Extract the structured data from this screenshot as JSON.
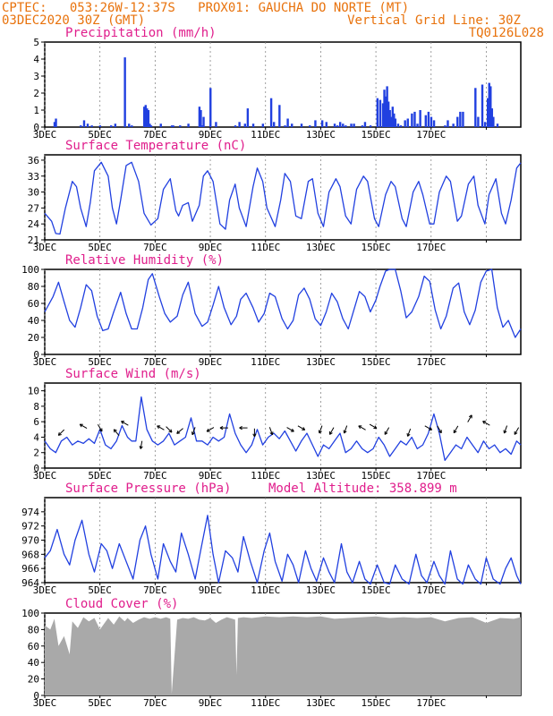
{
  "header": {
    "line1": "CPTEC:   053:26W-12:37S   PROX01: GAUCHA DO NORTE (MT)",
    "line2": "03DEC2020 30Z (GMT)",
    "grid_note": "Vertical Grid Line: 30Z",
    "code": "TQ0126L028"
  },
  "colors": {
    "header": "#e8720c",
    "title": "#e01e8c",
    "series": "#2140e0",
    "cloud": "#a9a9a9"
  },
  "x_labels": [
    "3DEC",
    "5DEC",
    "7DEC",
    "9DEC",
    "11DEC",
    "13DEC",
    "15DEC",
    "17DEC"
  ],
  "chart_data": [
    {
      "type": "bar",
      "title": "Precipitation (mm/h)",
      "ylim": [
        0,
        5
      ],
      "yticks": [
        0,
        1,
        2,
        3,
        4,
        5
      ],
      "x": [
        0.35,
        0.4,
        1.3,
        1.42,
        1.55,
        1.7,
        2.0,
        2.4,
        2.55,
        2.9,
        3.05,
        3.15,
        3.6,
        3.65,
        3.7,
        3.75,
        3.8,
        3.85,
        4.2,
        4.6,
        4.65,
        4.9,
        5.2,
        5.6,
        5.65,
        5.7,
        5.75,
        6.0,
        6.2,
        6.9,
        7.05,
        7.25,
        7.35,
        7.55,
        7.9,
        8.2,
        8.3,
        8.5,
        8.7,
        8.8,
        8.95,
        9.3,
        9.6,
        9.8,
        10.05,
        10.2,
        10.5,
        10.6,
        10.7,
        10.8,
        10.9,
        11.1,
        11.2,
        11.5,
        11.6,
        11.8,
        12.05,
        12.15,
        12.25,
        12.3,
        12.35,
        12.4,
        12.45,
        12.5,
        12.55,
        12.6,
        12.65,
        12.7,
        12.8,
        12.9,
        13.05,
        13.15,
        13.3,
        13.4,
        13.5,
        13.6,
        13.8,
        13.9,
        14.0,
        14.1,
        14.5,
        14.6,
        14.8,
        14.95,
        15.05,
        15.15,
        15.6,
        15.7,
        15.85,
        15.95,
        16.05,
        16.1,
        16.15,
        16.2,
        16.25,
        16.4
      ],
      "values": [
        0.3,
        0.5,
        0.1,
        0.4,
        0.2,
        0.1,
        0.1,
        0.1,
        0.2,
        4.1,
        0.2,
        0.1,
        1.2,
        1.3,
        1.1,
        1.0,
        0.2,
        0.1,
        0.2,
        0.1,
        0.1,
        0.1,
        0.2,
        1.2,
        1.0,
        0.1,
        0.6,
        2.3,
        0.3,
        0.1,
        0.3,
        0.2,
        1.1,
        0.2,
        0.2,
        1.7,
        0.3,
        1.3,
        0.1,
        0.5,
        0.2,
        0.2,
        0.1,
        0.4,
        0.4,
        0.3,
        0.2,
        0.1,
        0.3,
        0.2,
        0.1,
        0.2,
        0.2,
        0.1,
        0.3,
        0.1,
        1.7,
        1.6,
        1.4,
        2.2,
        1.8,
        2.4,
        1.5,
        1.0,
        0.6,
        1.2,
        0.8,
        0.5,
        0.2,
        0.1,
        0.4,
        0.5,
        0.8,
        0.9,
        0.2,
        1.0,
        0.7,
        0.9,
        0.6,
        0.4,
        0.1,
        0.4,
        0.2,
        0.6,
        0.9,
        0.9,
        2.3,
        0.6,
        2.5,
        0.3,
        1.7,
        2.6,
        2.4,
        1.1,
        0.6,
        0.2
      ]
    },
    {
      "type": "line",
      "title": "Surface Temperature (nC)",
      "ylim": [
        21,
        37
      ],
      "yticks": [
        21,
        24,
        27,
        30,
        33,
        36
      ],
      "x": [
        0,
        0.25,
        0.4,
        0.55,
        0.75,
        1.0,
        1.15,
        1.3,
        1.5,
        1.65,
        1.8,
        2.05,
        2.3,
        2.45,
        2.6,
        2.75,
        2.95,
        3.15,
        3.4,
        3.6,
        3.85,
        4.1,
        4.3,
        4.55,
        4.75,
        4.85,
        5.0,
        5.2,
        5.35,
        5.6,
        5.75,
        5.9,
        6.1,
        6.35,
        6.55,
        6.7,
        6.9,
        7.05,
        7.3,
        7.55,
        7.7,
        7.9,
        8.05,
        8.35,
        8.55,
        8.7,
        8.9,
        9.1,
        9.3,
        9.55,
        9.7,
        9.9,
        10.1,
        10.3,
        10.55,
        10.7,
        10.9,
        11.1,
        11.3,
        11.55,
        11.7,
        11.95,
        12.1,
        12.35,
        12.55,
        12.7,
        12.95,
        13.1,
        13.35,
        13.55,
        13.7,
        13.95,
        14.1,
        14.3,
        14.55,
        14.7,
        14.95,
        15.1,
        15.35,
        15.55,
        15.7,
        15.95,
        16.1,
        16.35,
        16.55,
        16.7,
        16.9,
        17.1,
        17.25
      ],
      "values": [
        26.0,
        24.5,
        22.2,
        22.1,
        27.0,
        32.0,
        31.0,
        27.0,
        23.5,
        28.0,
        34.0,
        35.6,
        33.0,
        27.0,
        24.0,
        28.5,
        35.0,
        35.6,
        32.0,
        26.0,
        23.8,
        25.0,
        30.5,
        32.5,
        26.5,
        25.5,
        27.5,
        28.0,
        24.5,
        27.5,
        33.0,
        34.0,
        32.0,
        24.0,
        23.0,
        28.5,
        31.5,
        27.0,
        23.5,
        31.0,
        34.5,
        32.0,
        27.0,
        23.5,
        28.5,
        33.5,
        32.0,
        25.5,
        25.0,
        32.0,
        32.5,
        26.0,
        23.5,
        30.0,
        32.5,
        31.0,
        25.5,
        24.0,
        30.5,
        33.0,
        32.0,
        25.0,
        23.5,
        29.5,
        32.0,
        31.0,
        25.0,
        23.5,
        30.0,
        32.0,
        29.5,
        24.0,
        24.0,
        30.0,
        33.0,
        32.0,
        24.5,
        25.5,
        31.5,
        33.0,
        27.5,
        24.0,
        29.5,
        32.5,
        26.0,
        24.0,
        28.5,
        34.5,
        35.5
      ]
    },
    {
      "type": "line",
      "title": "Relative Humidity (%)",
      "ylim": [
        0,
        100
      ],
      "yticks": [
        0,
        20,
        40,
        60,
        80,
        100
      ],
      "x": [
        0,
        0.3,
        0.5,
        0.7,
        0.9,
        1.1,
        1.3,
        1.5,
        1.7,
        1.9,
        2.1,
        2.3,
        2.5,
        2.75,
        2.95,
        3.15,
        3.35,
        3.55,
        3.75,
        3.9,
        4.15,
        4.35,
        4.55,
        4.8,
        5.0,
        5.2,
        5.45,
        5.7,
        5.9,
        6.1,
        6.3,
        6.5,
        6.75,
        6.95,
        7.1,
        7.3,
        7.55,
        7.75,
        7.95,
        8.15,
        8.35,
        8.6,
        8.8,
        9.0,
        9.2,
        9.4,
        9.6,
        9.8,
        10.0,
        10.2,
        10.4,
        10.6,
        10.8,
        11.0,
        11.2,
        11.4,
        11.6,
        11.8,
        12.0,
        12.15,
        12.35,
        12.5,
        12.7,
        12.9,
        13.1,
        13.3,
        13.55,
        13.75,
        13.95,
        14.15,
        14.35,
        14.55,
        14.8,
        15.0,
        15.2,
        15.4,
        15.6,
        15.8,
        16.0,
        16.2,
        16.4,
        16.6,
        16.8,
        17.05,
        17.25
      ],
      "values": [
        50,
        68,
        85,
        62,
        40,
        32,
        55,
        82,
        75,
        45,
        28,
        30,
        50,
        73,
        48,
        30,
        30,
        55,
        88,
        95,
        68,
        48,
        38,
        45,
        70,
        85,
        48,
        33,
        38,
        58,
        80,
        55,
        35,
        45,
        65,
        72,
        55,
        38,
        48,
        72,
        68,
        42,
        30,
        40,
        70,
        78,
        65,
        42,
        34,
        50,
        72,
        62,
        42,
        30,
        52,
        74,
        68,
        50,
        64,
        80,
        98,
        100,
        100,
        75,
        43,
        50,
        68,
        92,
        86,
        52,
        30,
        45,
        78,
        84,
        50,
        35,
        52,
        85,
        98,
        100,
        55,
        32,
        40,
        20,
        30
      ]
    },
    {
      "type": "line",
      "title": "Surface Wind (m/s)",
      "ylim": [
        0,
        11
      ],
      "yticks": [
        0,
        2,
        4,
        6,
        8,
        10
      ],
      "x": [
        0,
        0.2,
        0.4,
        0.6,
        0.8,
        1.0,
        1.2,
        1.4,
        1.6,
        1.8,
        2.0,
        2.2,
        2.4,
        2.6,
        2.8,
        3.0,
        3.15,
        3.3,
        3.5,
        3.7,
        3.9,
        4.1,
        4.3,
        4.5,
        4.7,
        4.9,
        5.1,
        5.3,
        5.5,
        5.7,
        5.9,
        6.1,
        6.3,
        6.5,
        6.7,
        6.9,
        7.1,
        7.3,
        7.5,
        7.7,
        7.9,
        8.1,
        8.3,
        8.5,
        8.7,
        8.9,
        9.1,
        9.3,
        9.5,
        9.7,
        9.9,
        10.1,
        10.3,
        10.5,
        10.7,
        10.9,
        11.1,
        11.3,
        11.5,
        11.7,
        11.9,
        12.1,
        12.3,
        12.5,
        12.7,
        12.9,
        13.1,
        13.3,
        13.5,
        13.7,
        13.9,
        14.1,
        14.3,
        14.5,
        14.7,
        14.9,
        15.1,
        15.3,
        15.5,
        15.7,
        15.9,
        16.1,
        16.3,
        16.5,
        16.7,
        16.9,
        17.1,
        17.25
      ],
      "values": [
        3.5,
        2.5,
        2.0,
        3.5,
        4.0,
        3.0,
        3.5,
        3.2,
        3.8,
        3.2,
        5.0,
        3.0,
        2.5,
        3.5,
        5.5,
        4.0,
        3.5,
        3.5,
        9.2,
        5.0,
        3.5,
        3.0,
        3.5,
        4.5,
        3.0,
        3.5,
        4.0,
        6.5,
        3.5,
        3.5,
        3.0,
        4.0,
        3.5,
        4.0,
        7.0,
        4.5,
        3.0,
        2.0,
        3.0,
        5.0,
        3.0,
        4.0,
        4.5,
        3.8,
        4.8,
        3.5,
        2.2,
        3.5,
        4.5,
        3.0,
        1.5,
        3.0,
        2.5,
        3.5,
        4.5,
        2.0,
        2.5,
        3.5,
        2.5,
        2.0,
        2.5,
        4.0,
        3.0,
        1.5,
        2.5,
        3.5,
        3.0,
        4.0,
        2.5,
        3.0,
        4.5,
        7.0,
        4.5,
        1.0,
        2.0,
        3.0,
        2.5,
        4.0,
        3.0,
        2.0,
        3.5,
        2.5,
        3.0,
        2.0,
        2.5,
        1.8,
        3.5,
        3.0
      ]
    },
    {
      "type": "line",
      "title": "Surface Pressure (hPa)",
      "annotation": "Model Altitude: 358.899  m",
      "ylim": [
        964,
        976
      ],
      "yticks": [
        964,
        966,
        968,
        970,
        972,
        974
      ],
      "x": [
        0,
        0.2,
        0.45,
        0.7,
        0.9,
        1.1,
        1.35,
        1.6,
        1.8,
        2.05,
        2.25,
        2.45,
        2.7,
        2.95,
        3.2,
        3.45,
        3.65,
        3.85,
        4.1,
        4.3,
        4.55,
        4.75,
        4.95,
        5.2,
        5.45,
        5.65,
        5.9,
        6.1,
        6.3,
        6.55,
        6.8,
        7.0,
        7.2,
        7.45,
        7.7,
        7.95,
        8.15,
        8.35,
        8.6,
        8.8,
        9.0,
        9.2,
        9.45,
        9.65,
        9.85,
        10.1,
        10.3,
        10.5,
        10.75,
        10.95,
        11.15,
        11.4,
        11.6,
        11.8,
        12.05,
        12.3,
        12.5,
        12.7,
        12.95,
        13.2,
        13.45,
        13.65,
        13.85,
        14.1,
        14.3,
        14.5,
        14.7,
        14.95,
        15.15,
        15.35,
        15.6,
        15.8,
        16.0,
        16.25,
        16.5,
        16.7,
        16.9,
        17.1,
        17.25
      ],
      "values": [
        967.5,
        968.5,
        971.5,
        968.0,
        966.5,
        970.0,
        972.8,
        968.0,
        965.5,
        969.5,
        968.5,
        966.0,
        969.5,
        967.0,
        964.5,
        970.0,
        972.0,
        968.0,
        964.5,
        969.5,
        967.0,
        965.5,
        971.0,
        968.0,
        964.5,
        968.5,
        973.5,
        968.0,
        964.0,
        968.5,
        967.5,
        965.5,
        970.5,
        967.0,
        964.0,
        968.5,
        971.0,
        967.0,
        964.2,
        968.0,
        966.5,
        964.0,
        968.5,
        966.0,
        964.2,
        967.5,
        965.5,
        964.0,
        969.5,
        965.5,
        964.0,
        967.0,
        964.5,
        963.8,
        966.5,
        964.0,
        963.8,
        966.5,
        964.5,
        963.8,
        968.0,
        965.0,
        964.0,
        967.0,
        965.0,
        963.8,
        968.5,
        964.5,
        963.8,
        966.5,
        964.5,
        963.8,
        967.5,
        964.5,
        963.8,
        966.0,
        967.5,
        965.0,
        963.8
      ]
    },
    {
      "type": "area",
      "title": "Cloud Cover (%)",
      "ylim": [
        0,
        100
      ],
      "yticks": [
        0,
        20,
        40,
        60,
        80,
        100
      ],
      "x": [
        0,
        0.2,
        0.35,
        0.5,
        0.7,
        0.9,
        1.0,
        1.2,
        1.4,
        1.6,
        1.8,
        2.0,
        2.3,
        2.5,
        2.7,
        2.9,
        3.0,
        3.2,
        3.4,
        3.6,
        3.8,
        4.0,
        4.2,
        4.4,
        4.55,
        4.6,
        4.8,
        5.0,
        5.2,
        5.4,
        5.6,
        5.8,
        6.0,
        6.2,
        6.4,
        6.6,
        6.8,
        6.9,
        6.95,
        7.0,
        7.2,
        7.5,
        8.0,
        8.5,
        9.0,
        9.5,
        10.0,
        10.5,
        11.0,
        11.5,
        12.0,
        12.5,
        13.0,
        13.5,
        14.0,
        14.5,
        15.0,
        15.5,
        16.0,
        16.5,
        17.0,
        17.25
      ],
      "values": [
        85,
        80,
        93,
        60,
        72,
        50,
        90,
        82,
        95,
        90,
        94,
        80,
        94,
        86,
        96,
        90,
        94,
        88,
        92,
        95,
        93,
        95,
        93,
        95,
        93,
        2,
        92,
        94,
        93,
        95,
        92,
        91,
        94,
        88,
        92,
        95,
        93,
        92,
        25,
        94,
        95,
        94,
        96,
        95,
        96,
        95,
        96,
        93,
        94,
        95,
        96,
        94,
        95,
        94,
        95,
        90,
        94,
        95,
        88,
        94,
        93,
        95
      ]
    }
  ],
  "wind_arrows": [
    {
      "x": 0.6,
      "y": 4.6,
      "dir": 225
    },
    {
      "x": 1.4,
      "y": 5.4,
      "dir": 300
    },
    {
      "x": 2.0,
      "y": 5.2,
      "dir": 150
    },
    {
      "x": 2.6,
      "y": 4.6,
      "dir": 320
    },
    {
      "x": 2.9,
      "y": 5.8,
      "dir": 300
    },
    {
      "x": 3.5,
      "y": 3.0,
      "dir": 190
    },
    {
      "x": 4.2,
      "y": 5.2,
      "dir": 300
    },
    {
      "x": 4.5,
      "y": 5.0,
      "dir": 135
    },
    {
      "x": 4.9,
      "y": 4.8,
      "dir": 230
    },
    {
      "x": 5.4,
      "y": 4.8,
      "dir": 200
    },
    {
      "x": 6.0,
      "y": 5.0,
      "dir": 240
    },
    {
      "x": 6.5,
      "y": 5.2,
      "dir": 270
    },
    {
      "x": 7.2,
      "y": 5.2,
      "dir": 270
    },
    {
      "x": 7.6,
      "y": 4.6,
      "dir": 180
    },
    {
      "x": 8.2,
      "y": 4.8,
      "dir": 160
    },
    {
      "x": 8.9,
      "y": 5.0,
      "dir": 120
    },
    {
      "x": 9.3,
      "y": 5.2,
      "dir": 120
    },
    {
      "x": 10.0,
      "y": 5.0,
      "dir": 200
    },
    {
      "x": 10.4,
      "y": 4.8,
      "dir": 210
    },
    {
      "x": 10.9,
      "y": 5.0,
      "dir": 200
    },
    {
      "x": 11.5,
      "y": 5.2,
      "dir": 300
    },
    {
      "x": 11.9,
      "y": 5.4,
      "dir": 120
    },
    {
      "x": 12.4,
      "y": 4.8,
      "dir": 210
    },
    {
      "x": 13.2,
      "y": 4.6,
      "dir": 200
    },
    {
      "x": 13.9,
      "y": 5.2,
      "dir": 120
    },
    {
      "x": 14.3,
      "y": 5.0,
      "dir": 150
    },
    {
      "x": 14.9,
      "y": 5.0,
      "dir": 210
    },
    {
      "x": 15.4,
      "y": 6.4,
      "dir": 30
    },
    {
      "x": 16.0,
      "y": 5.8,
      "dir": 300
    },
    {
      "x": 16.7,
      "y": 5.0,
      "dir": 200
    },
    {
      "x": 17.1,
      "y": 4.8,
      "dir": 210
    }
  ]
}
